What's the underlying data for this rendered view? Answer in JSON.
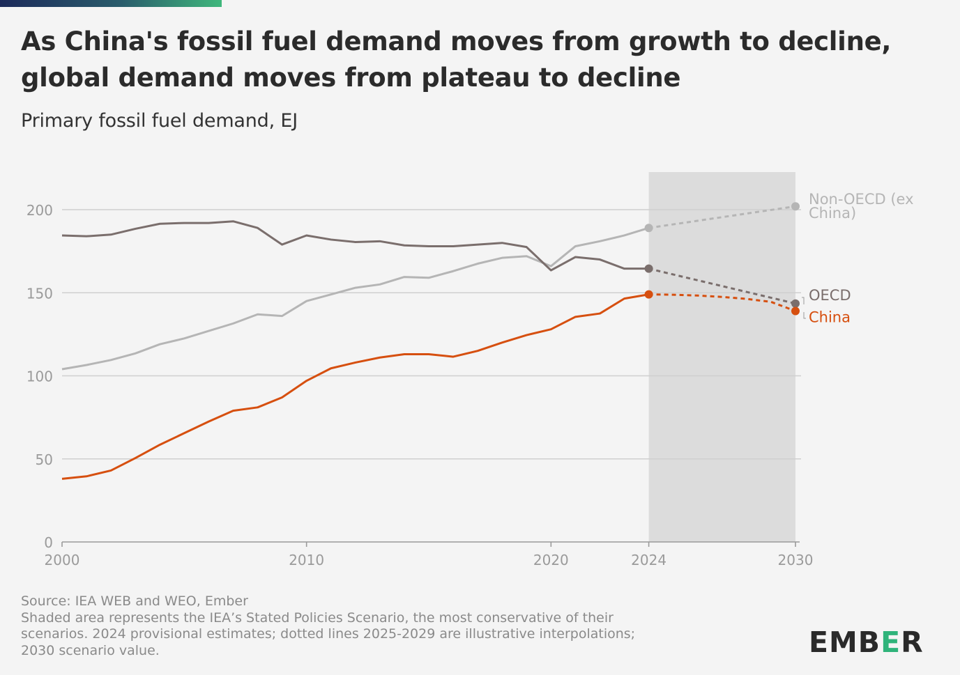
{
  "title": "As China's fossil fuel demand moves from growth to decline, global demand moves from plateau to decline",
  "subtitle": "Primary fossil fuel demand, EJ",
  "notes": {
    "source": "Source: IEA WEB and WEO, Ember",
    "line1": "Shaded area represents the IEA’s Stated Policies Scenario, the most conservative of their",
    "line2": "scenarios. 2024 provisional estimates; dotted lines 2025-2029 are illustrative interpolations;",
    "line3": "2030 scenario value."
  },
  "logo": {
    "prefix": "EMB",
    "e": "E",
    "suffix": "R"
  },
  "colors": {
    "non_oecd": "#b5b5b5",
    "oecd": "#7a6e6c",
    "china": "#d64f0f",
    "shade": "#dcdcdc",
    "grid": "#cfcfcf",
    "tick": "#9a9a9a"
  },
  "chart_data": {
    "type": "line",
    "title": "As China's fossil fuel demand moves from growth to decline, global demand moves from plateau to decline",
    "ylabel": "Primary fossil fuel demand, EJ",
    "ylim": [
      0,
      220
    ],
    "xlim": [
      2000,
      2030
    ],
    "yticks": [
      0,
      50,
      100,
      150,
      200
    ],
    "xticks": [
      2000,
      2010,
      2020,
      2024,
      2030
    ],
    "shaded_region": [
      2024,
      2030
    ],
    "grid": true,
    "series": [
      {
        "name": "Non-OECD (ex China)",
        "label_lines": [
          "Non-OECD (ex",
          "China)"
        ],
        "color": "#b5b5b5",
        "x": [
          2000,
          2001,
          2002,
          2003,
          2004,
          2005,
          2006,
          2007,
          2008,
          2009,
          2010,
          2011,
          2012,
          2013,
          2014,
          2015,
          2016,
          2017,
          2018,
          2019,
          2020,
          2021,
          2022,
          2023,
          2024
        ],
        "values": [
          104,
          106.5,
          109.5,
          113.5,
          119,
          122.5,
          127,
          131.5,
          137,
          136,
          145,
          149,
          153,
          155,
          159.5,
          159,
          163,
          167.5,
          171,
          172,
          166,
          178,
          181,
          184.5,
          189
        ],
        "projection": {
          "x": [
            2024,
            2030
          ],
          "values": [
            189,
            202
          ]
        }
      },
      {
        "name": "OECD",
        "label_lines": [
          "OECD"
        ],
        "color": "#7a6e6c",
        "x": [
          2000,
          2001,
          2002,
          2003,
          2004,
          2005,
          2006,
          2007,
          2008,
          2009,
          2010,
          2011,
          2012,
          2013,
          2014,
          2015,
          2016,
          2017,
          2018,
          2019,
          2020,
          2021,
          2022,
          2023,
          2024
        ],
        "values": [
          184.5,
          184,
          185,
          188.5,
          191.5,
          192,
          192,
          193,
          189,
          179,
          184.5,
          182,
          180.5,
          181,
          178.5,
          178,
          178,
          179,
          180,
          177.5,
          163.5,
          171.5,
          170,
          164.5,
          164.5
        ],
        "projection": {
          "x": [
            2024,
            2030
          ],
          "values": [
            164.5,
            143.5
          ]
        }
      },
      {
        "name": "China",
        "label_lines": [
          "China"
        ],
        "color": "#d64f0f",
        "x": [
          2000,
          2001,
          2002,
          2003,
          2004,
          2005,
          2006,
          2007,
          2008,
          2009,
          2010,
          2011,
          2012,
          2013,
          2014,
          2015,
          2016,
          2017,
          2018,
          2019,
          2020,
          2021,
          2022,
          2023,
          2024
        ],
        "values": [
          38,
          39.5,
          43,
          50.5,
          58.5,
          65.5,
          72.5,
          79,
          81,
          87,
          97,
          104.5,
          108,
          111,
          113,
          113,
          111.5,
          115,
          120,
          124.5,
          128,
          135.5,
          137.5,
          146.5,
          149
        ],
        "projection": {
          "x": [
            2024,
            2025,
            2026,
            2027,
            2028,
            2029,
            2030
          ],
          "values": [
            149,
            148.8,
            148.3,
            147.5,
            146.3,
            144.5,
            139
          ]
        }
      }
    ]
  }
}
